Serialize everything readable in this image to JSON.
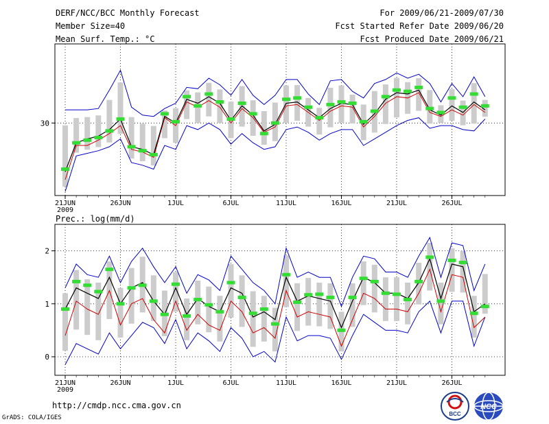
{
  "header": {
    "title": "DERF/NCC/BCC Monthly Forecast",
    "member_size": "Member Size=40",
    "variable": "Mean Surf. Temp.: °C",
    "period": "For 2009/06/21-2009/07/30",
    "started": "Fcst Started Refer Date 2009/06/20",
    "produced": "Fcst Produced Date 2009/06/21"
  },
  "x_tick_labels": [
    "21JUN",
    "26JUN",
    "1JUL",
    "6JUL",
    "11JUL",
    "16JUL",
    "21JUL",
    "26JUL"
  ],
  "x_year_label": "2009",
  "footer": {
    "url": "http://cmdp.ncc.cma.gov.cn",
    "grads": "GrADS: COLA/IGES",
    "logo_left_text": "BCC",
    "logo_right_text": "NCC"
  },
  "colors": {
    "mean": "#000000",
    "spread": "#0000cc",
    "control": "#cc0000",
    "marker": "#33dd33",
    "box": "#cccccc"
  },
  "chart_data": [
    {
      "type": "line",
      "title": "Mean Surf. Temp.: °C",
      "x_days": [
        0,
        1,
        2,
        3,
        4,
        5,
        6,
        7,
        8,
        9,
        10,
        11,
        12,
        13,
        14,
        15,
        16,
        17,
        18,
        19,
        20,
        21,
        22,
        23,
        24,
        25,
        26,
        27,
        28,
        29,
        30,
        31,
        32,
        33,
        34,
        35,
        36,
        37,
        38
      ],
      "ylim": [
        24.5,
        36.0
      ],
      "yticks": [
        30
      ],
      "series": [
        {
          "name": "ensemble mean",
          "values": [
            26.3,
            28.5,
            28.8,
            29.0,
            29.5,
            30.3,
            28.2,
            28.0,
            27.6,
            30.5,
            30.0,
            31.8,
            31.5,
            32.0,
            31.5,
            30.2,
            31.3,
            30.6,
            29.4,
            29.9,
            31.5,
            31.6,
            31.0,
            30.4,
            31.1,
            31.5,
            31.4,
            29.9,
            30.7,
            31.8,
            32.3,
            32.2,
            32.5,
            31.0,
            30.6,
            31.3,
            30.8,
            31.6,
            31.0
          ]
        },
        {
          "name": "ensemble max",
          "values": [
            31.0,
            31.0,
            31.0,
            31.1,
            32.5,
            34.0,
            31.2,
            30.6,
            30.5,
            31.1,
            31.5,
            32.7,
            32.6,
            33.4,
            32.9,
            32.1,
            33.3,
            32.1,
            31.4,
            32.1,
            33.3,
            33.3,
            32.2,
            31.4,
            33.2,
            33.3,
            32.4,
            31.9,
            33.0,
            33.3,
            33.8,
            33.4,
            33.7,
            33.0,
            31.6,
            33.0,
            32.0,
            33.5,
            32.0
          ]
        },
        {
          "name": "ensemble min",
          "values": [
            24.8,
            27.5,
            27.7,
            27.9,
            28.2,
            28.8,
            27.0,
            26.8,
            26.5,
            28.3,
            28.0,
            29.8,
            29.5,
            30.0,
            29.5,
            28.4,
            29.2,
            28.5,
            28.0,
            28.2,
            29.5,
            29.7,
            29.3,
            28.7,
            29.2,
            29.5,
            29.5,
            28.3,
            28.8,
            29.3,
            29.8,
            30.2,
            30.4,
            29.6,
            29.8,
            29.8,
            29.5,
            29.4,
            30.3
          ]
        },
        {
          "name": "control",
          "values": [
            25.7,
            28.3,
            28.3,
            28.7,
            29.2,
            29.8,
            28.0,
            27.8,
            27.4,
            30.4,
            29.8,
            31.6,
            31.2,
            31.7,
            31.2,
            30.0,
            31.1,
            30.4,
            29.3,
            29.7,
            31.3,
            31.4,
            30.8,
            30.2,
            30.9,
            31.3,
            31.2,
            29.7,
            30.5,
            31.5,
            32.0,
            31.9,
            32.3,
            30.8,
            30.5,
            31.0,
            30.6,
            31.4,
            30.8
          ]
        },
        {
          "name": "observed marker",
          "values": [
            26.5,
            28.5,
            28.7,
            28.9,
            29.4,
            30.3,
            28.2,
            27.9,
            27.6,
            30.7,
            30.1,
            32.0,
            31.3,
            32.2,
            31.6,
            30.3,
            31.5,
            30.7,
            29.2,
            30.0,
            31.8,
            31.9,
            31.2,
            30.4,
            31.4,
            31.6,
            31.5,
            30.1,
            30.9,
            32.0,
            32.5,
            32.4,
            32.7,
            31.1,
            30.8,
            31.9,
            31.2,
            32.2,
            31.3
          ]
        }
      ]
    },
    {
      "type": "line",
      "title": "Prec.: log(mm/d)",
      "x_days": [
        0,
        1,
        2,
        3,
        4,
        5,
        6,
        7,
        8,
        9,
        10,
        11,
        12,
        13,
        14,
        15,
        16,
        17,
        18,
        19,
        20,
        21,
        22,
        23,
        24,
        25,
        26,
        27,
        28,
        29,
        30,
        31,
        32,
        33,
        34,
        35,
        36,
        37,
        38
      ],
      "ylim": [
        -0.35,
        2.5
      ],
      "yticks": [
        0,
        1,
        2
      ],
      "series": [
        {
          "name": "ensemble mean",
          "values": [
            0.9,
            1.3,
            1.2,
            1.1,
            1.5,
            1.0,
            1.3,
            1.4,
            1.05,
            0.8,
            1.3,
            0.8,
            1.1,
            0.95,
            0.85,
            1.3,
            1.2,
            0.75,
            0.85,
            0.7,
            1.5,
            1.05,
            1.15,
            1.1,
            1.05,
            0.55,
            1.05,
            1.5,
            1.4,
            1.2,
            1.2,
            1.1,
            1.4,
            1.85,
            1.1,
            1.75,
            1.7,
            0.85,
            1.0
          ]
        },
        {
          "name": "ensemble max",
          "values": [
            1.3,
            1.75,
            1.55,
            1.5,
            1.9,
            1.4,
            1.8,
            2.05,
            1.7,
            1.4,
            1.7,
            1.2,
            1.55,
            1.45,
            1.25,
            1.9,
            1.65,
            1.4,
            1.25,
            1.0,
            2.05,
            1.5,
            1.6,
            1.5,
            1.5,
            0.95,
            1.5,
            1.9,
            1.85,
            1.6,
            1.6,
            1.5,
            1.9,
            2.25,
            1.5,
            2.15,
            2.1,
            1.25,
            1.75
          ]
        },
        {
          "name": "ensemble min",
          "values": [
            -0.15,
            0.25,
            0.15,
            0.05,
            0.45,
            0.15,
            0.4,
            0.65,
            0.55,
            0.25,
            0.7,
            0.15,
            0.45,
            0.3,
            0.1,
            0.55,
            0.35,
            0.0,
            0.1,
            -0.1,
            0.75,
            0.3,
            0.4,
            0.4,
            0.35,
            -0.05,
            0.4,
            0.8,
            0.65,
            0.5,
            0.5,
            0.45,
            0.85,
            1.05,
            0.45,
            1.05,
            1.05,
            0.2,
            0.75
          ]
        },
        {
          "name": "control",
          "values": [
            0.4,
            1.05,
            0.9,
            0.8,
            1.25,
            0.6,
            1.0,
            1.1,
            0.7,
            0.45,
            1.05,
            0.5,
            0.8,
            0.6,
            0.5,
            1.05,
            0.85,
            0.45,
            0.55,
            0.35,
            1.25,
            0.75,
            0.85,
            0.8,
            0.75,
            0.2,
            0.7,
            1.2,
            1.1,
            0.9,
            0.9,
            0.85,
            1.2,
            1.65,
            0.85,
            1.55,
            1.5,
            0.55,
            0.75
          ]
        },
        {
          "name": "observed marker",
          "values": [
            0.9,
            1.42,
            1.35,
            1.23,
            1.65,
            1.0,
            1.3,
            1.35,
            1.05,
            0.8,
            1.37,
            0.77,
            1.08,
            0.98,
            0.85,
            1.4,
            1.12,
            0.82,
            0.9,
            0.62,
            1.55,
            1.03,
            1.17,
            1.18,
            1.12,
            0.5,
            1.12,
            1.48,
            1.42,
            1.2,
            1.18,
            1.08,
            1.42,
            1.88,
            1.05,
            1.82,
            1.78,
            0.82,
            0.95
          ]
        }
      ]
    }
  ]
}
